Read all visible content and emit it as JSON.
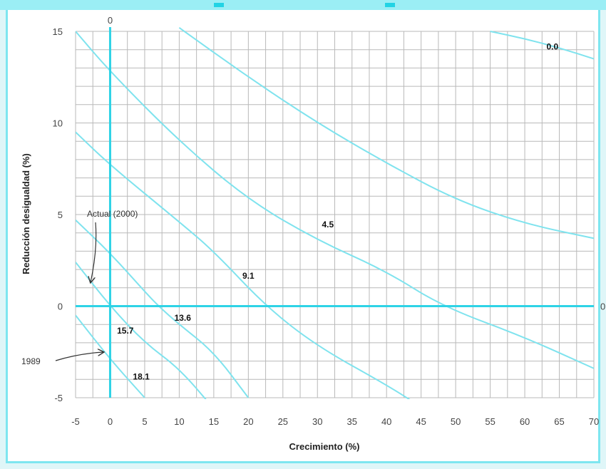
{
  "chart_data": {
    "type": "line",
    "xlabel": "Crecimiento (%)",
    "ylabel": "Reducción desigualdad (%)",
    "xlim": [
      -5,
      70
    ],
    "ylim": [
      -5,
      15
    ],
    "x_ticks": [
      "-5",
      "0",
      "5",
      "10",
      "15",
      "20",
      "25",
      "30",
      "35",
      "40",
      "45",
      "50",
      "55",
      "60",
      "65",
      "70"
    ],
    "y_ticks": [
      "-5",
      "0",
      "5",
      "10",
      "15"
    ],
    "zero_axis_labels": {
      "vertical_top": "0",
      "horizontal_right": "0"
    },
    "grid": true,
    "accent_color": "#2ed3e6",
    "grid_color": "#b9b9b9",
    "series": [
      {
        "name": "0.0",
        "label_at": [
          64,
          14.0
        ],
        "points": [
          [
            55,
            15
          ],
          [
            60,
            14.6
          ],
          [
            65,
            14.1
          ],
          [
            70,
            13.5
          ]
        ]
      },
      {
        "name": "4.5",
        "label_at": [
          31.5,
          4.3
        ],
        "points": [
          [
            10,
            15.2
          ],
          [
            20,
            12.5
          ],
          [
            30,
            10.0
          ],
          [
            40,
            7.8
          ],
          [
            50,
            5.8
          ],
          [
            60,
            4.5
          ],
          [
            70,
            3.7
          ]
        ]
      },
      {
        "name": "9.1",
        "label_at": [
          20,
          1.5
        ],
        "points": [
          [
            -5,
            15
          ],
          [
            0,
            12.8
          ],
          [
            10,
            9.0
          ],
          [
            20,
            5.8
          ],
          [
            30,
            3.6
          ],
          [
            40,
            1.9
          ],
          [
            48,
            0
          ],
          [
            60,
            -1.7
          ],
          [
            70,
            -3.4
          ]
        ]
      },
      {
        "name": "13.6",
        "label_at": [
          10.5,
          -0.8
        ],
        "points": [
          [
            -5,
            9.5
          ],
          [
            0,
            7.7
          ],
          [
            10,
            4.6
          ],
          [
            15,
            3.0
          ],
          [
            22.5,
            0
          ],
          [
            30,
            -2.2
          ],
          [
            40,
            -4.3
          ],
          [
            45,
            -5.5
          ]
        ]
      },
      {
        "name": "15.7",
        "label_at": [
          2.2,
          -1.5
        ],
        "points": [
          [
            -5,
            4.7
          ],
          [
            0,
            2.9
          ],
          [
            5,
            0.8
          ],
          [
            7,
            0
          ],
          [
            10,
            -1.0
          ],
          [
            15,
            -2.5
          ],
          [
            20,
            -5.0
          ]
        ]
      },
      {
        "name": "18.1",
        "label_at": [
          4.5,
          -4.0
        ],
        "points": [
          [
            -5,
            2.4
          ],
          [
            0,
            0
          ],
          [
            5,
            -2.0
          ],
          [
            10,
            -3.4
          ],
          [
            15,
            -5.6
          ]
        ]
      },
      {
        "name": "",
        "label_at": null,
        "points": [
          [
            -5,
            -0.5
          ],
          [
            0,
            -2.9
          ],
          [
            5,
            -5.0
          ]
        ]
      }
    ],
    "annotations": [
      {
        "text": "Actual (2000)",
        "text_at": [
          -3,
          5.1
        ],
        "arrow_from": [
          -1.5,
          2.5
        ],
        "arrow_to": [
          -3,
          1.2
        ]
      },
      {
        "text": "1989",
        "text_at": [
          -12,
          -3.0
        ],
        "arrow_from": [
          -8,
          -2.7
        ],
        "arrow_to": [
          -0.5,
          -2.5
        ]
      }
    ]
  }
}
